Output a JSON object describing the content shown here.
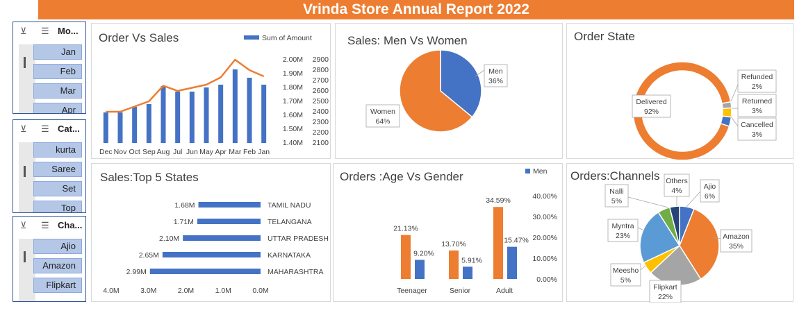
{
  "header": {
    "title": "Vrinda Store Annual Report 2022"
  },
  "slicers": [
    {
      "title": "Mo...",
      "items": [
        "Jan",
        "Feb",
        "Mar",
        "Apr"
      ]
    },
    {
      "title": "Cat...",
      "items": [
        "kurta",
        "Saree",
        "Set",
        "Top"
      ]
    },
    {
      "title": "Cha...",
      "items": [
        "Ajio",
        "Amazon",
        "Flipkart"
      ]
    }
  ],
  "colors": {
    "orange": "#ed7d31",
    "blue": "#4472c4",
    "gray": "#a5a5a5",
    "yellow": "#ffc000",
    "lightblue": "#5b9bd5",
    "green": "#70ad47",
    "navy": "#264478"
  },
  "chart_data": [
    {
      "id": "order_vs_sales",
      "type": "bar+line",
      "title": "Order Vs Sales",
      "legend": "top-right",
      "categories": [
        "Dec",
        "Nov",
        "Oct",
        "Sep",
        "Aug",
        "Jul",
        "Jun",
        "May",
        "Apr",
        "Mar",
        "Feb",
        "Jan"
      ],
      "series": [
        {
          "name": "Sum of Amount",
          "type": "bar",
          "axis": "left",
          "values": [
            1.62,
            1.62,
            1.66,
            1.68,
            1.81,
            1.77,
            1.77,
            1.8,
            1.82,
            1.93,
            1.87,
            1.82
          ]
        },
        {
          "type": "line",
          "axis": "right",
          "values": [
            2400,
            2400,
            2450,
            2500,
            2650,
            2600,
            2630,
            2660,
            2730,
            2900,
            2800,
            2740
          ]
        }
      ],
      "left_axis": {
        "min": 1.4,
        "max": 2.0,
        "ticks": [
          "2.00M",
          "1.90M",
          "1.80M",
          "1.70M",
          "1.60M",
          "1.50M",
          "1.40M"
        ]
      },
      "right_axis": {
        "min": 2100,
        "max": 2900,
        "ticks": [
          "2900",
          "2800",
          "2700",
          "2600",
          "2500",
          "2400",
          "2300",
          "2200",
          "2100"
        ]
      }
    },
    {
      "id": "men_vs_women",
      "type": "pie",
      "title": "Sales: Men Vs Women",
      "slices": [
        {
          "name": "Men",
          "value": 36,
          "label": "36%"
        },
        {
          "name": "Women",
          "value": 64,
          "label": "64%"
        }
      ]
    },
    {
      "id": "order_state",
      "type": "pie",
      "subtype": "doughnut",
      "title": "Order State",
      "slices": [
        {
          "name": "Delivered",
          "value": 92,
          "label": "92%"
        },
        {
          "name": "Refunded",
          "value": 2,
          "label": "2%"
        },
        {
          "name": "Returned",
          "value": 3,
          "label": "3%"
        },
        {
          "name": "Cancelled",
          "value": 3,
          "label": "3%"
        }
      ]
    },
    {
      "id": "top5_states",
      "type": "bar",
      "orientation": "horizontal",
      "title": "Sales:Top 5 States",
      "categories": [
        "TAMIL NADU",
        "TELANGANA",
        "UTTAR PRADESH",
        "KARNATAKA",
        "MAHARASHTRA"
      ],
      "values": [
        1.68,
        1.71,
        2.1,
        2.65,
        2.99
      ],
      "data_labels": [
        "1.68M",
        "1.71M",
        "2.10M",
        "2.65M",
        "2.99M"
      ],
      "xlim": [
        0,
        4
      ],
      "x_ticks": [
        "4.0M",
        "3.0M",
        "2.0M",
        "1.0M",
        "0.0M"
      ]
    },
    {
      "id": "age_vs_gender",
      "type": "bar",
      "title": "Orders :Age Vs Gender",
      "legend": "top-right",
      "categories": [
        "Teenager",
        "Senior",
        "Adult"
      ],
      "series": [
        {
          "values": [
            21.13,
            13.7,
            34.59
          ],
          "labels": [
            "21.13%",
            "13.70%",
            "34.59%"
          ]
        },
        {
          "name": "Men",
          "values": [
            9.2,
            5.91,
            15.47
          ],
          "labels": [
            "9.20%",
            "5.91%",
            "15.47%"
          ]
        }
      ],
      "ylim": [
        0,
        40
      ],
      "y_ticks": [
        "40.00%",
        "30.00%",
        "20.00%",
        "10.00%",
        "0.00%"
      ]
    },
    {
      "id": "channels",
      "type": "pie",
      "title": "Orders:Channels",
      "slices": [
        {
          "name": "Ajio",
          "value": 6,
          "label": "6%"
        },
        {
          "name": "Amazon",
          "value": 35,
          "label": "35%"
        },
        {
          "name": "Flipkart",
          "value": 22,
          "label": "22%"
        },
        {
          "name": "Meesho",
          "value": 5,
          "label": "5%"
        },
        {
          "name": "Myntra",
          "value": 23,
          "label": "23%"
        },
        {
          "name": "Nalli",
          "value": 5,
          "label": "5%"
        },
        {
          "name": "Others",
          "value": 4,
          "label": "4%"
        }
      ]
    }
  ]
}
